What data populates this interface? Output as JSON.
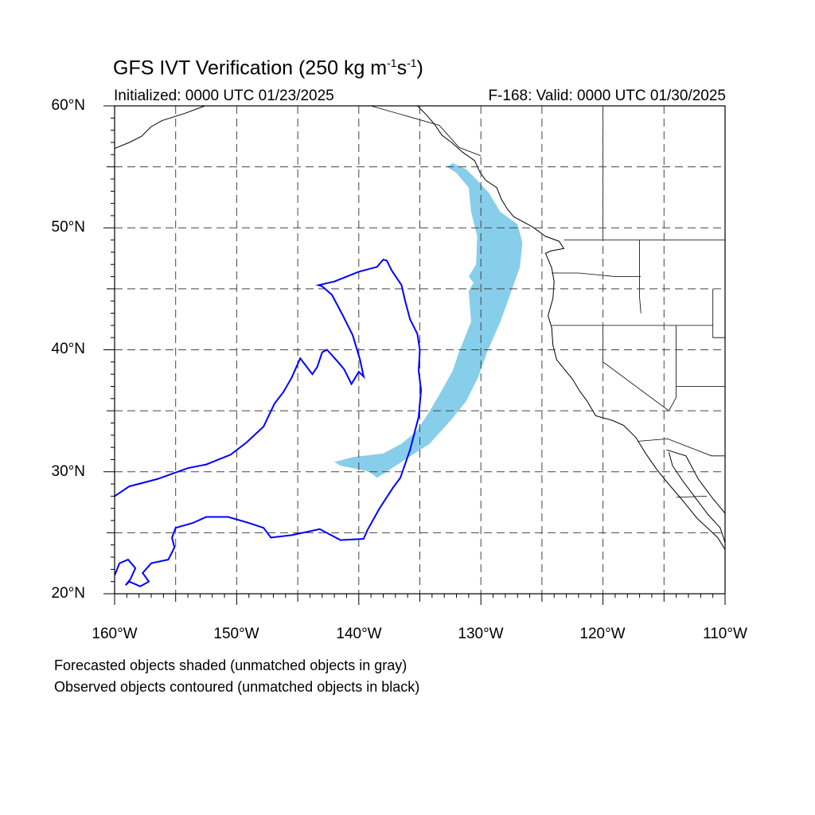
{
  "title": {
    "main": "GFS IVT Verification (250 kg m",
    "exp1": "-1",
    "mid": "s",
    "exp2": "-1",
    "close": ")"
  },
  "subtitle": {
    "initialized": "Initialized: 0000 UTC 01/23/2025",
    "valid": "F-168: Valid: 0000 UTC 01/30/2025"
  },
  "map": {
    "lon_range": [
      -160,
      -110
    ],
    "lat_range": [
      20,
      60
    ],
    "grid": "dashed",
    "grid_lon_step": 5,
    "grid_lat_step": 5,
    "forecast_color": "#87ceeb",
    "observed_color": "#0000ff",
    "coast_color": "#000000"
  },
  "lat_labels": [
    {
      "lat": 60,
      "text": "60°N"
    },
    {
      "lat": 50,
      "text": "50°N"
    },
    {
      "lat": 40,
      "text": "40°N"
    },
    {
      "lat": 30,
      "text": "30°N"
    },
    {
      "lat": 20,
      "text": "20°N"
    }
  ],
  "lon_labels": [
    {
      "lon": -160,
      "text": "160°W"
    },
    {
      "lon": -150,
      "text": "150°W"
    },
    {
      "lon": -140,
      "text": "140°W"
    },
    {
      "lon": -130,
      "text": "130°W"
    },
    {
      "lon": -120,
      "text": "120°W"
    },
    {
      "lon": -110,
      "text": "110°W"
    }
  ],
  "forecast_object": [
    [
      -132.3,
      55.3
    ],
    [
      -131.2,
      54.8
    ],
    [
      -130.2,
      53.8
    ],
    [
      -129.3,
      52.8
    ],
    [
      -128.4,
      51.3
    ],
    [
      -127.0,
      50.3
    ],
    [
      -126.6,
      48.8
    ],
    [
      -126.8,
      46.8
    ],
    [
      -127.5,
      44.8
    ],
    [
      -128.4,
      42.3
    ],
    [
      -129.5,
      39.8
    ],
    [
      -130.2,
      37.8
    ],
    [
      -131.2,
      35.8
    ],
    [
      -132.4,
      34.3
    ],
    [
      -134.2,
      32.3
    ],
    [
      -136.2,
      31.0
    ],
    [
      -138.5,
      29.5
    ],
    [
      -139.0,
      29.9
    ],
    [
      -139.5,
      30.1
    ],
    [
      -141.5,
      30.5
    ],
    [
      -142.0,
      30.8
    ],
    [
      -140.5,
      31.2
    ],
    [
      -138.0,
      31.5
    ],
    [
      -136.5,
      32.3
    ],
    [
      -135.3,
      33.3
    ],
    [
      -134.3,
      34.8
    ],
    [
      -133.3,
      36.5
    ],
    [
      -132.3,
      38.3
    ],
    [
      -131.8,
      39.8
    ],
    [
      -130.8,
      42.3
    ],
    [
      -131.0,
      44.8
    ],
    [
      -130.6,
      45.5
    ],
    [
      -131.0,
      46.0
    ],
    [
      -130.4,
      47.0
    ],
    [
      -130.3,
      49.3
    ],
    [
      -130.8,
      51.3
    ],
    [
      -131.0,
      53.3
    ],
    [
      -132.0,
      54.5
    ],
    [
      -132.8,
      55.0
    ]
  ],
  "observed_object": [
    [
      -160.0,
      28.0
    ],
    [
      -158.8,
      28.8
    ],
    [
      -156.5,
      29.4
    ],
    [
      -154.0,
      30.3
    ],
    [
      -152.5,
      30.6
    ],
    [
      -150.5,
      31.4
    ],
    [
      -149.2,
      32.4
    ],
    [
      -147.8,
      33.7
    ],
    [
      -146.9,
      35.6
    ],
    [
      -146.2,
      36.5
    ],
    [
      -145.5,
      37.7
    ],
    [
      -144.8,
      39.3
    ],
    [
      -143.8,
      38.0
    ],
    [
      -143.4,
      38.6
    ],
    [
      -143.0,
      39.8
    ],
    [
      -142.6,
      40.0
    ],
    [
      -141.7,
      39.0
    ],
    [
      -141.2,
      38.4
    ],
    [
      -140.6,
      37.2
    ],
    [
      -140.0,
      38.2
    ],
    [
      -139.6,
      37.8
    ],
    [
      -139.9,
      39.2
    ],
    [
      -140.5,
      41.2
    ],
    [
      -141.3,
      42.8
    ],
    [
      -142.2,
      44.5
    ],
    [
      -143.0,
      45.2
    ],
    [
      -143.3,
      45.3
    ],
    [
      -142.0,
      45.6
    ],
    [
      -140.0,
      46.4
    ],
    [
      -138.5,
      46.8
    ],
    [
      -138.0,
      47.4
    ],
    [
      -137.7,
      47.3
    ],
    [
      -137.3,
      46.5
    ],
    [
      -136.5,
      45.3
    ],
    [
      -136.2,
      44.0
    ],
    [
      -135.8,
      42.5
    ],
    [
      -135.2,
      41.3
    ],
    [
      -135.0,
      40.0
    ],
    [
      -135.1,
      38.3
    ],
    [
      -134.9,
      36.7
    ],
    [
      -135.1,
      34.5
    ],
    [
      -135.8,
      31.8
    ],
    [
      -136.6,
      29.5
    ],
    [
      -137.2,
      28.7
    ],
    [
      -138.3,
      27.0
    ],
    [
      -139.3,
      25.2
    ],
    [
      -139.6,
      24.5
    ],
    [
      -141.5,
      24.4
    ],
    [
      -143.2,
      25.3
    ],
    [
      -145.5,
      24.8
    ],
    [
      -147.2,
      24.6
    ],
    [
      -147.8,
      25.4
    ],
    [
      -149.0,
      25.8
    ],
    [
      -150.7,
      26.3
    ],
    [
      -152.5,
      26.3
    ],
    [
      -153.6,
      25.8
    ],
    [
      -155.0,
      25.4
    ],
    [
      -155.3,
      24.6
    ],
    [
      -155.1,
      23.8
    ],
    [
      -155.6,
      22.8
    ],
    [
      -157.0,
      22.5
    ],
    [
      -157.7,
      21.7
    ],
    [
      -157.2,
      21.0
    ],
    [
      -157.9,
      20.6
    ],
    [
      -158.8,
      21.0
    ],
    [
      -159.1,
      20.7
    ],
    [
      -158.7,
      21.2
    ],
    [
      -158.3,
      22.1
    ],
    [
      -158.9,
      22.8
    ],
    [
      -159.6,
      22.5
    ],
    [
      -160.0,
      21.5
    ]
  ],
  "coastline": [
    [
      -135.2,
      60.0
    ],
    [
      -134.5,
      59.3
    ],
    [
      -133.8,
      58.5
    ],
    [
      -133.2,
      57.6
    ],
    [
      -132.4,
      57.0
    ],
    [
      -131.5,
      56.2
    ],
    [
      -130.5,
      55.5
    ],
    [
      -130.1,
      54.6
    ],
    [
      -129.6,
      53.9
    ],
    [
      -128.7,
      53.3
    ],
    [
      -128.3,
      52.3
    ],
    [
      -127.8,
      51.5
    ],
    [
      -127.3,
      50.9
    ],
    [
      -125.8,
      50.1
    ],
    [
      -124.7,
      49.3
    ],
    [
      -123.6,
      48.9
    ],
    [
      -123.2,
      48.3
    ],
    [
      -124.3,
      48.1
    ],
    [
      -124.7,
      47.9
    ],
    [
      -124.2,
      46.7
    ],
    [
      -124.0,
      45.6
    ],
    [
      -124.1,
      44.2
    ],
    [
      -124.5,
      42.8
    ],
    [
      -124.2,
      41.8
    ],
    [
      -124.1,
      40.4
    ],
    [
      -123.8,
      39.2
    ],
    [
      -123.0,
      38.2
    ],
    [
      -122.5,
      37.6
    ],
    [
      -121.9,
      36.6
    ],
    [
      -121.3,
      35.8
    ],
    [
      -120.6,
      34.6
    ],
    [
      -119.2,
      34.2
    ],
    [
      -118.3,
      33.8
    ],
    [
      -117.3,
      32.8
    ],
    [
      -116.5,
      31.5
    ],
    [
      -115.6,
      30.2
    ],
    [
      -114.8,
      29.2
    ],
    [
      -113.6,
      27.8
    ],
    [
      -112.3,
      26.2
    ],
    [
      -110.6,
      24.6
    ],
    [
      -109.8,
      23.3
    ]
  ],
  "baja_gulf_coast": [
    [
      -114.6,
      31.6
    ],
    [
      -114.3,
      30.5
    ],
    [
      -113.5,
      29.3
    ],
    [
      -112.6,
      28.1
    ],
    [
      -111.4,
      26.5
    ],
    [
      -110.4,
      25.4
    ],
    [
      -110.0,
      24.2
    ]
  ],
  "mainland_gulf_coast": [
    [
      -114.8,
      31.8
    ],
    [
      -113.2,
      31.3
    ],
    [
      -112.2,
      29.4
    ],
    [
      -111.0,
      27.8
    ],
    [
      -110.0,
      26.6
    ]
  ],
  "alaska_coast": [
    [
      -160.0,
      56.5
    ],
    [
      -158.8,
      57.0
    ],
    [
      -157.8,
      57.5
    ],
    [
      -157.0,
      58.3
    ],
    [
      -156.1,
      58.8
    ],
    [
      -154.2,
      59.4
    ],
    [
      -152.6,
      60.0
    ]
  ],
  "borders": [
    [
      [
        -123.2,
        49.0
      ],
      [
        -110.0,
        49.0
      ]
    ],
    [
      [
        -124.2,
        46.3
      ],
      [
        -122.0,
        46.3
      ],
      [
        -119.0,
        46.0
      ],
      [
        -116.9,
        46.0
      ]
    ],
    [
      [
        -117.0,
        49.0
      ],
      [
        -117.0,
        44.3
      ],
      [
        -116.9,
        43.0
      ]
    ],
    [
      [
        -124.2,
        42.0
      ],
      [
        -111.0,
        42.0
      ]
    ],
    [
      [
        -120.0,
        42.0
      ],
      [
        -120.0,
        39.0
      ],
      [
        -114.6,
        35.0
      ]
    ],
    [
      [
        -114.6,
        35.0
      ],
      [
        -114.0,
        36.1
      ],
      [
        -114.0,
        42.0
      ]
    ],
    [
      [
        -114.0,
        37.0
      ],
      [
        -110.0,
        37.0
      ]
    ],
    [
      [
        -111.0,
        45.0
      ],
      [
        -111.0,
        41.0
      ],
      [
        -110.0,
        41.0
      ]
    ],
    [
      [
        -117.1,
        32.5
      ],
      [
        -114.7,
        32.7
      ],
      [
        -111.1,
        31.3
      ],
      [
        -110.0,
        31.3
      ]
    ],
    [
      [
        -114.0,
        27.9
      ],
      [
        -111.5,
        28.0
      ]
    ],
    [
      [
        -139.0,
        60.0
      ],
      [
        -133.4,
        58.4
      ],
      [
        -131.8,
        56.6
      ],
      [
        -130.0,
        55.9
      ]
    ],
    [
      [
        -120.0,
        60.0
      ],
      [
        -120.0,
        49.0
      ]
    ]
  ],
  "notes": {
    "line1": "Forecasted objects shaded (unmatched objects in gray)",
    "line2": "Observed objects contoured (unmatched objects in black)"
  }
}
